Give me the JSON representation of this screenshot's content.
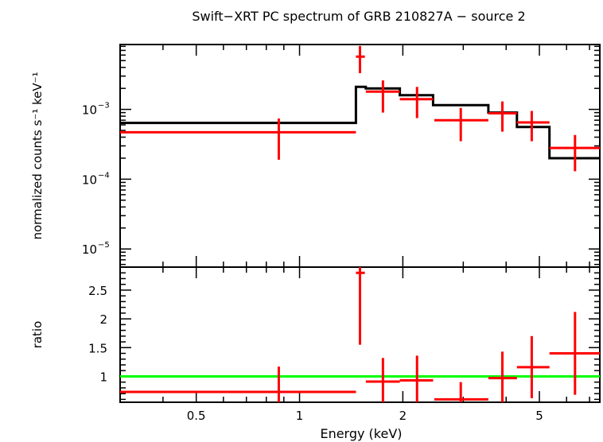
{
  "chart_data": [
    {
      "type": "scatter",
      "title": "Swift−XRT PC spectrum of GRB 210827A − source 2",
      "ylabel": "normalized counts s⁻¹ keV⁻¹",
      "xscale": "log",
      "yscale": "log",
      "xlim": [
        0.3,
        7.5
      ],
      "ylim": [
        5.5e-06,
        0.0085
      ],
      "yticks": [
        {
          "value": 0.001,
          "base": "10",
          "exp": "−3"
        },
        {
          "value": 0.0001,
          "base": "10",
          "exp": "−4"
        },
        {
          "value": 1e-05,
          "base": "10",
          "exp": "−5"
        }
      ],
      "data_points": [
        {
          "x": 0.87,
          "xlo": 0.3,
          "xhi": 1.46,
          "y": 0.00047,
          "ylo": 0.00019,
          "yhi": 0.00074
        },
        {
          "x": 1.5,
          "xlo": 1.46,
          "xhi": 1.55,
          "y": 0.0057,
          "ylo": 0.0033,
          "yhi": 0.0081
        },
        {
          "x": 1.75,
          "xlo": 1.56,
          "xhi": 1.96,
          "y": 0.0018,
          "ylo": 0.0009,
          "yhi": 0.0026
        },
        {
          "x": 2.2,
          "xlo": 1.96,
          "xhi": 2.45,
          "y": 0.0014,
          "ylo": 0.00075,
          "yhi": 0.0021
        },
        {
          "x": 2.95,
          "xlo": 2.47,
          "xhi": 3.55,
          "y": 0.0007,
          "ylo": 0.00035,
          "yhi": 0.00105
        },
        {
          "x": 3.9,
          "xlo": 3.55,
          "xhi": 4.3,
          "y": 0.00088,
          "ylo": 0.00048,
          "yhi": 0.0013
        },
        {
          "x": 4.75,
          "xlo": 4.3,
          "xhi": 5.35,
          "y": 0.00065,
          "ylo": 0.00035,
          "yhi": 0.00095
        },
        {
          "x": 6.35,
          "xlo": 5.35,
          "xhi": 7.5,
          "y": 0.00028,
          "ylo": 0.00013,
          "yhi": 0.00043
        }
      ],
      "model_steps": [
        {
          "xlo": 0.3,
          "xhi": 1.46,
          "y": 0.00064
        },
        {
          "xlo": 1.46,
          "xhi": 1.56,
          "y": 0.0021
        },
        {
          "xlo": 1.56,
          "xhi": 1.96,
          "y": 0.002
        },
        {
          "xlo": 1.96,
          "xhi": 2.45,
          "y": 0.0016
        },
        {
          "xlo": 2.45,
          "xhi": 3.55,
          "y": 0.00115
        },
        {
          "xlo": 3.55,
          "xhi": 4.3,
          "y": 0.0009
        },
        {
          "xlo": 4.3,
          "xhi": 5.35,
          "y": 0.00056
        },
        {
          "xlo": 5.35,
          "xhi": 7.5,
          "y": 0.0002
        }
      ],
      "colors": {
        "data": "#ff0000",
        "model": "#000000"
      }
    },
    {
      "type": "scatter",
      "xlabel": "Energy (keV)",
      "ylabel": "ratio",
      "xscale": "log",
      "xlim": [
        0.3,
        7.5
      ],
      "ylim": [
        0.55,
        2.9
      ],
      "yticks": [
        1,
        1.5,
        2,
        2.5
      ],
      "ytick_labels": [
        "1",
        "1.5",
        "2",
        "2.5"
      ],
      "xticks": [
        0.5,
        1,
        2,
        5
      ],
      "xtick_labels": [
        "0.5",
        "1",
        "2",
        "5"
      ],
      "reference_line": 1,
      "data_points": [
        {
          "x": 0.87,
          "xlo": 0.3,
          "xhi": 1.46,
          "y": 0.73,
          "ylo": 0.3,
          "yhi": 1.17
        },
        {
          "x": 1.5,
          "xlo": 1.46,
          "xhi": 1.55,
          "y": 2.8,
          "ylo": 1.55,
          "yhi": 2.9
        },
        {
          "x": 1.75,
          "xlo": 1.56,
          "xhi": 1.96,
          "y": 0.91,
          "ylo": 0.5,
          "yhi": 1.32
        },
        {
          "x": 2.2,
          "xlo": 1.96,
          "xhi": 2.45,
          "y": 0.93,
          "ylo": 0.5,
          "yhi": 1.36
        },
        {
          "x": 2.95,
          "xlo": 2.47,
          "xhi": 3.55,
          "y": 0.6,
          "ylo": 0.3,
          "yhi": 0.9
        },
        {
          "x": 3.9,
          "xlo": 3.55,
          "xhi": 4.3,
          "y": 0.97,
          "ylo": 0.52,
          "yhi": 1.43
        },
        {
          "x": 4.75,
          "xlo": 4.3,
          "xhi": 5.35,
          "y": 1.16,
          "ylo": 0.62,
          "yhi": 1.7
        },
        {
          "x": 6.35,
          "xlo": 5.35,
          "xhi": 7.5,
          "y": 1.4,
          "ylo": 0.68,
          "yhi": 2.12
        }
      ],
      "colors": {
        "data": "#ff0000",
        "reference": "#00ff00"
      }
    }
  ]
}
